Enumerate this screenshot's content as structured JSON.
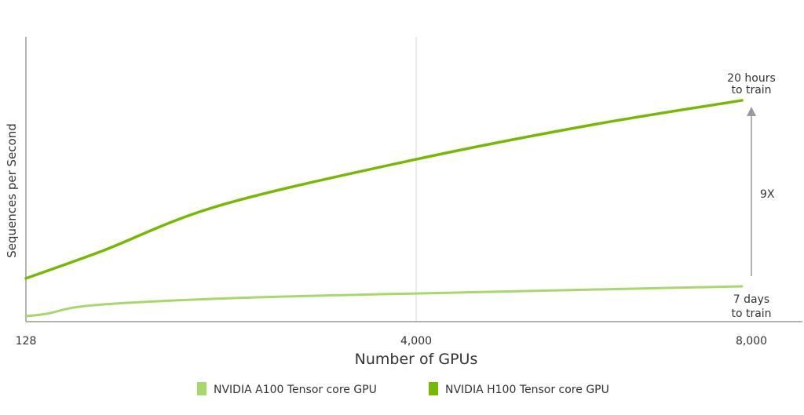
{
  "chart_data": {
    "type": "line",
    "title": "",
    "xlabel": "Number of GPUs",
    "ylabel": "Sequences per Second",
    "x_ticks": [
      "128",
      "4,000",
      "8,000"
    ],
    "x_tick_values": [
      128,
      4000,
      8000
    ],
    "y_ticks": [],
    "ylim": [
      0,
      100
    ],
    "y_units": "relative (axis unlabeled)",
    "grid": "single vertical line at 4,000",
    "legend_position": "bottom",
    "series": [
      {
        "name": "NVIDIA A100 Tensor core GPU",
        "color": "#a6d96a",
        "x": [
          128,
          338,
          806,
          2208,
          4000,
          8000
        ],
        "y": [
          1.9,
          2.8,
          5.8,
          8.3,
          9.9,
          12.4
        ]
      },
      {
        "name": "NVIDIA H100 Tensor core GPU",
        "color": "#76b900",
        "x": [
          128,
          884,
          2052,
          4000,
          6120,
          8000
        ],
        "y": [
          15.2,
          24.8,
          40.8,
          57.0,
          68.9,
          77.7
        ]
      }
    ],
    "annotations": {
      "h100_end": [
        "20 hours",
        "to train"
      ],
      "a100_end": [
        "7 days",
        "to train"
      ],
      "speedup": "9X"
    }
  }
}
